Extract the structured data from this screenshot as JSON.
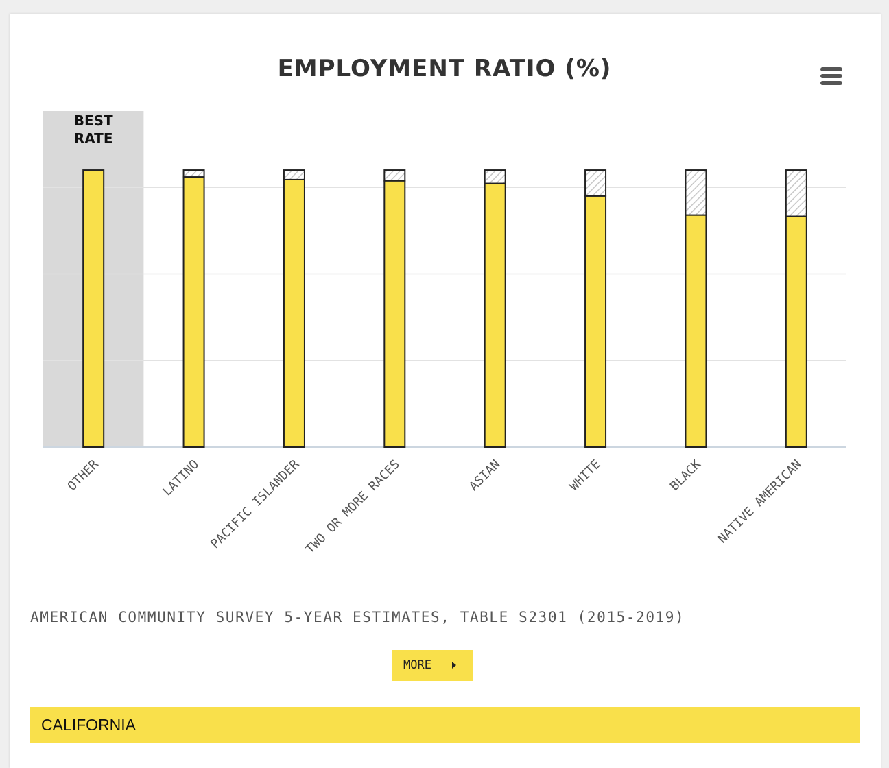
{
  "chart_data": {
    "type": "bar",
    "title": "EMPLOYMENT RATIO (%)",
    "categories": [
      "OTHER",
      "LATINO",
      "PACIFIC ISLANDER",
      "TWO OR MORE RACES",
      "ASIAN",
      "WHITE",
      "BLACK",
      "NATIVE AMERICAN"
    ],
    "values": [
      64.0,
      62.4,
      61.8,
      61.5,
      60.9,
      58.0,
      53.6,
      53.3
    ],
    "best_rate": 64.0,
    "highlight": {
      "category": "OTHER",
      "label_lines": [
        "BEST",
        "RATE"
      ]
    },
    "ylim": [
      0,
      61
    ],
    "yticks": [
      20,
      40,
      60
    ],
    "ytick_labels_visible": false,
    "grid": true,
    "legend": "none",
    "colors": {
      "bar": "#f9e04b",
      "bar_outline": "#222222",
      "gap_hatch": "#c8c8c8",
      "highlight_band": "#d9d9d9",
      "grid": "#e2e2e2"
    }
  },
  "menu": {
    "icon": "hamburger-menu-icon"
  },
  "source": "AMERICAN COMMUNITY SURVEY 5-YEAR ESTIMATES, TABLE S2301 (2015-2019)",
  "more_button": {
    "label": "MORE",
    "icon": "caret-right-icon"
  },
  "region": {
    "label": "CALIFORNIA"
  }
}
